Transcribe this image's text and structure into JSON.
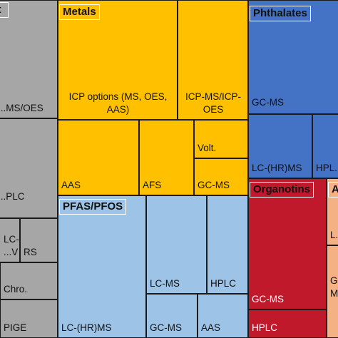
{
  "chart_data": {
    "type": "treemap",
    "title": "",
    "groups": [
      {
        "name": "...pt",
        "color": "#a6a6a6",
        "cells": [
          {
            "label": "...MS/OES"
          },
          {
            "label": "...PLC"
          },
          {
            "label": "LC-\n...V"
          },
          {
            "label": "RS"
          },
          {
            "label": "Chro."
          },
          {
            "label": "PIGE"
          }
        ]
      },
      {
        "name": "Metals",
        "color": "#ffc000",
        "cells": [
          {
            "label": "ICP options (MS, OES,\nAAS)"
          },
          {
            "label": "ICP-MS/ICP-\nOES"
          },
          {
            "label": "AAS"
          },
          {
            "label": "AFS"
          },
          {
            "label": "Volt."
          },
          {
            "label": "GC-MS"
          }
        ]
      },
      {
        "name": "Phthalates",
        "color": "#4472c4",
        "cells": [
          {
            "label": "GC-MS"
          },
          {
            "label": "LC-(HR)MS"
          },
          {
            "label": "HPL..."
          }
        ]
      },
      {
        "name": "PFAS/PFOS",
        "color": "#9dc3e6",
        "cells": [
          {
            "label": "LC-(HR)MS"
          },
          {
            "label": "LC-MS"
          },
          {
            "label": "HPLC"
          },
          {
            "label": "GC-MS"
          },
          {
            "label": "AAS"
          }
        ]
      },
      {
        "name": "Organotins",
        "color": "#c0192c",
        "cells": [
          {
            "label": "GC-MS"
          },
          {
            "label": "HPLC"
          }
        ]
      },
      {
        "name": "A...",
        "color": "#f4b183",
        "cells": [
          {
            "label": "L..."
          },
          {
            "label": "G...\nM..."
          }
        ]
      }
    ]
  }
}
